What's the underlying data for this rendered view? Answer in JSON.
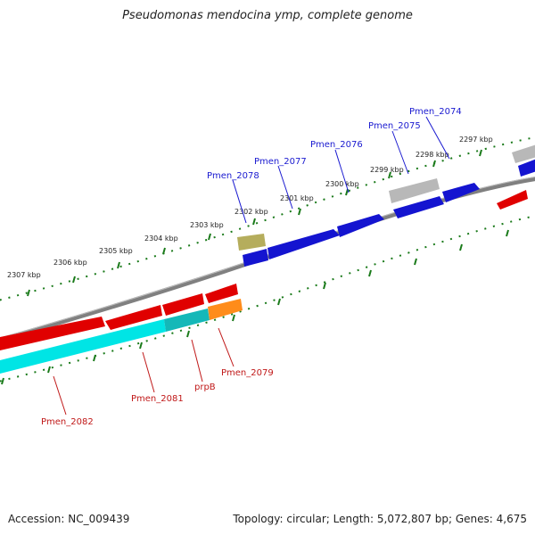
{
  "title": "Pseudomonas mendocina ymp, complete genome",
  "footer": {
    "accession": "Accession: NC_009439",
    "summary": "Topology: circular; Length: 5,072,807 bp; Genes: 4,675"
  },
  "colors": {
    "backbone": "#808080",
    "forward_gene": "#1414d0",
    "reverse_gene": "#e00000",
    "pseudo_gene": "#b8b8b8",
    "rna_gene": "#b5ad5c",
    "cyan_feature": "#00e5e5",
    "teal_feature": "#14b8b8",
    "orange_feature": "#ff8c1a",
    "tick": "#1a7a1a"
  },
  "kbp_labels": [
    "2307 kbp",
    "2306 kbp",
    "2305 kbp",
    "2304 kbp",
    "2303 kbp",
    "2302 kbp",
    "2301 kbp",
    "2300 kbp",
    "2299 kbp",
    "2298 kbp",
    "2297 kbp"
  ],
  "gene_labels": {
    "forward": [
      "Pmen_2074",
      "Pmen_2075",
      "Pmen_2076",
      "Pmen_2077",
      "Pmen_2078"
    ],
    "reverse": [
      "Pmen_2079",
      "prpB",
      "Pmen_2081",
      "Pmen_2082"
    ]
  }
}
